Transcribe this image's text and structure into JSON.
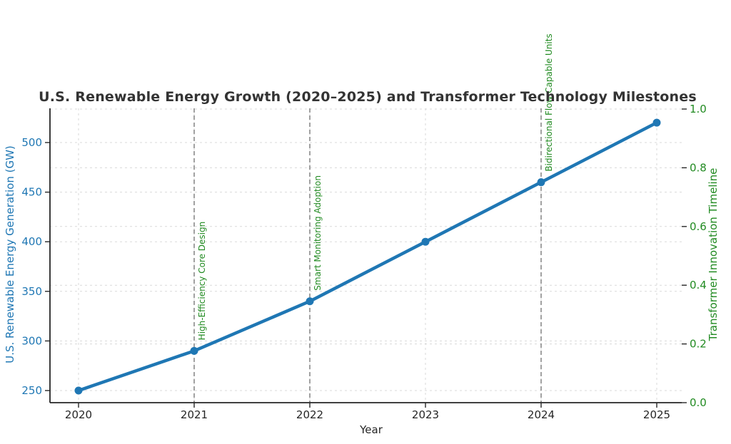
{
  "chart_data": {
    "type": "line",
    "title": "U.S. Renewable Energy Growth (2020–2025) and Transformer Technology Milestones",
    "xlabel": "Year",
    "x": [
      2020,
      2021,
      2022,
      2023,
      2024,
      2025
    ],
    "series": [
      {
        "name": "U.S. Renewable Energy Generation (GW)",
        "axis": "left",
        "values": [
          250,
          290,
          340,
          400,
          460,
          520
        ],
        "color": "#1f77b4",
        "marker": "circle"
      }
    ],
    "left_axis": {
      "label": "U.S. Renewable Energy Generation (GW)",
      "ticks": [
        250,
        300,
        350,
        400,
        450,
        500
      ],
      "range": [
        237,
        537
      ],
      "color": "#1f77b4"
    },
    "right_axis": {
      "label": "Transformer Innovation Timeline",
      "ticks": [
        0.0,
        0.2,
        0.4,
        0.6,
        0.8,
        1.0
      ],
      "range": [
        0.0,
        1.0
      ],
      "color": "#228B22"
    },
    "milestones": [
      {
        "x": 2021,
        "label": "High-Efficiency Core Design"
      },
      {
        "x": 2022,
        "label": "Smart Monitoring Adoption"
      },
      {
        "x": 2024,
        "label": "Bidirectional Flow Capable Units"
      }
    ],
    "grid": true,
    "legend": "none",
    "colors": {
      "background": "#ffffff",
      "line": "#1f77b4",
      "milestone_line": "#8a8a8a",
      "milestone_text": "#228B22",
      "grid": "#d9d9d9",
      "title": "#333333",
      "axis": "#262626"
    }
  }
}
